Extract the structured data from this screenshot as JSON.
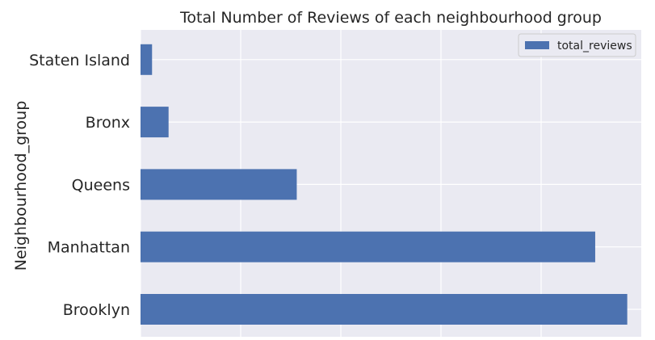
{
  "chart_data": {
    "type": "bar",
    "orientation": "horizontal",
    "title": "Total Number of Reviews of each neighbourhood group",
    "xlabel": "",
    "ylabel": "Neighbourhood_group",
    "categories": [
      "Brooklyn",
      "Manhattan",
      "Queens",
      "Bronx",
      "Staten Island"
    ],
    "series": [
      {
        "name": "total_reviews",
        "values": [
          486000,
          454000,
          156000,
          28000,
          11500
        ]
      }
    ],
    "xlim": [
      0,
      500000
    ],
    "x_gridlines": [
      0,
      100000,
      200000,
      300000,
      400000
    ],
    "x_tick_labels_visible": false,
    "grid": true,
    "legend_position": "top-right",
    "colors": {
      "bar": "#4c72b0",
      "plot_background": "#eaeaf2",
      "grid": "#ffffff",
      "text": "#262626"
    }
  }
}
